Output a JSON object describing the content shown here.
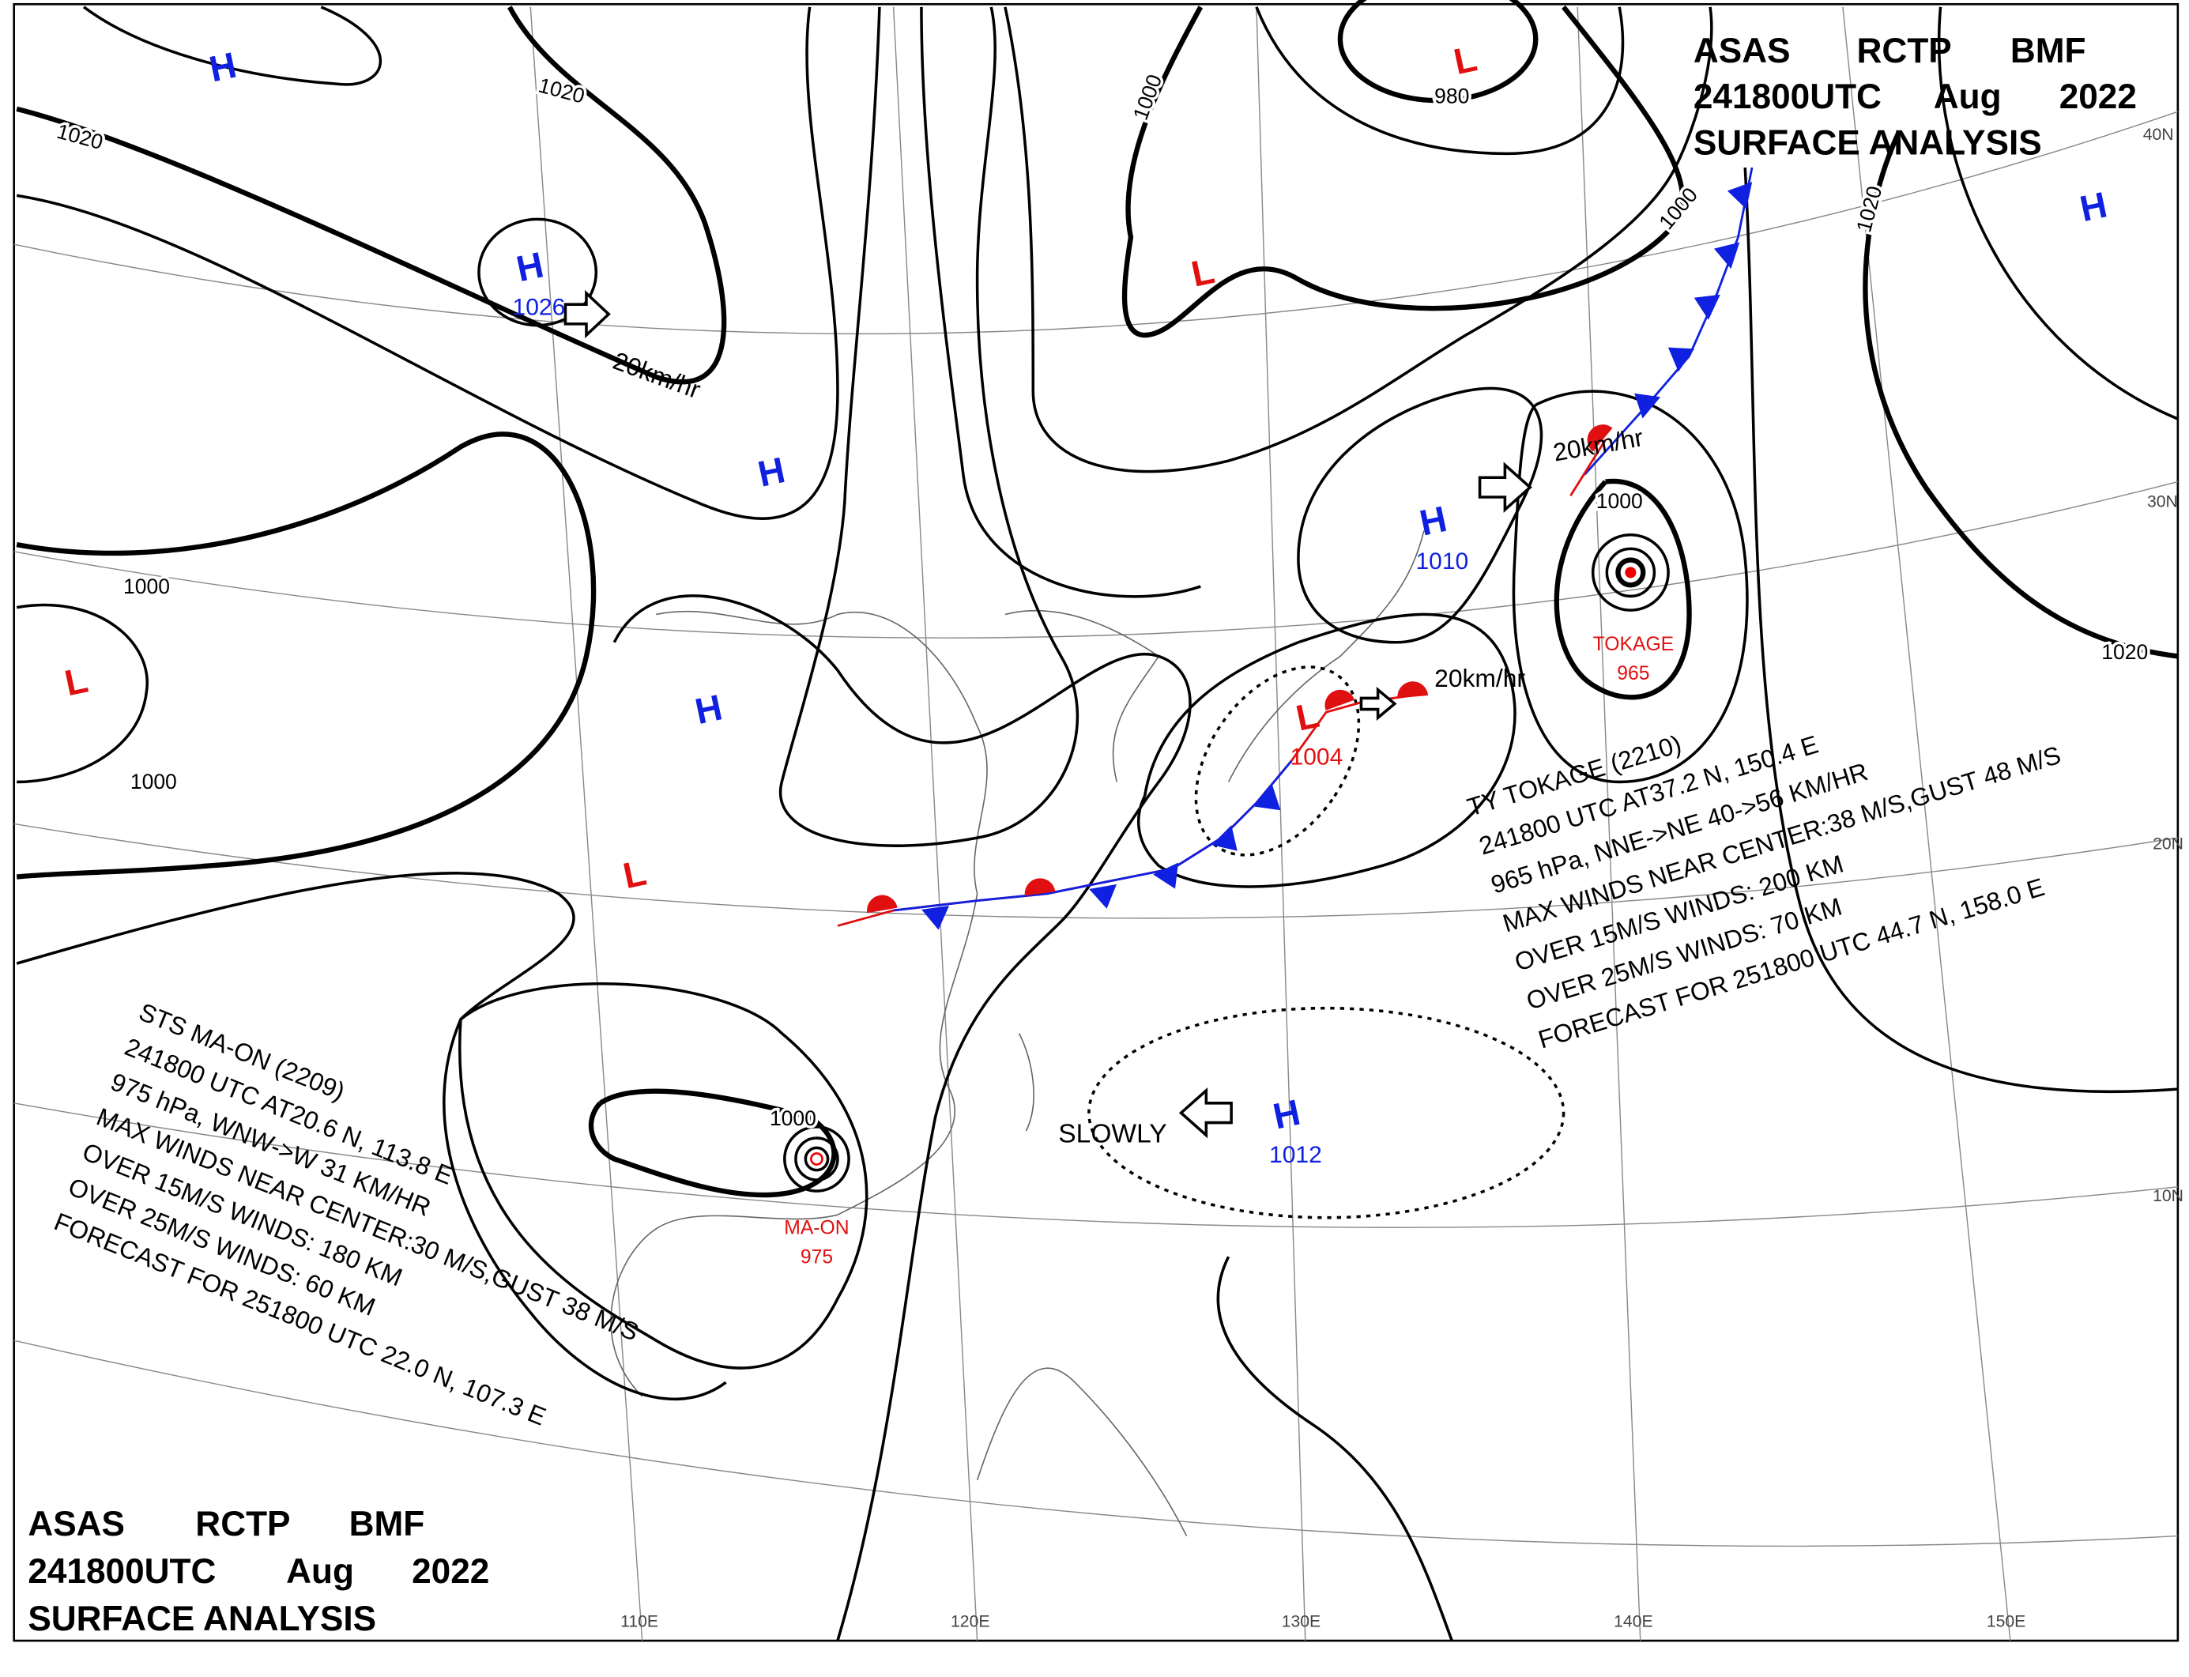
{
  "header": {
    "rows": [
      [
        "ASAS",
        "RCTP",
        "BMF"
      ],
      [
        "241800UTC",
        "Aug",
        "2022"
      ],
      [
        "SURFACE  ANALYSIS"
      ]
    ]
  },
  "pressure_centers": [
    {
      "symbol": "H"
    },
    {
      "symbol": "H",
      "value": 1026
    },
    {
      "symbol": "H"
    },
    {
      "symbol": "H"
    },
    {
      "symbol": "H",
      "value": 1010
    },
    {
      "symbol": "H",
      "value": 1012
    },
    {
      "symbol": "H"
    },
    {
      "symbol": "L"
    },
    {
      "symbol": "L"
    },
    {
      "symbol": "L"
    },
    {
      "symbol": "L"
    },
    {
      "symbol": "L",
      "value": 1004
    }
  ],
  "typhoons": [
    {
      "name": "TOKAGE",
      "value": 965,
      "info": [
        "TY  TOKAGE  (2210)",
        "241800 UTC  AT37.2 N, 150.4 E",
        "965 hPa, NNE->NE  40->56 KM/HR",
        "MAX WINDS NEAR CENTER:38 M/S,GUST 48 M/S",
        "OVER 15M/S WINDS: 200 KM",
        "OVER 25M/S WINDS: 70 KM",
        "FORECAST FOR 251800 UTC 44.7 N, 158.0 E"
      ]
    },
    {
      "name": "MA-ON",
      "value": 975,
      "info": [
        "STS  MA-ON  (2209)",
        "241800 UTC  AT20.6 N, 113.8 E",
        "975 hPa, WNW->W  31 KM/HR",
        "MAX WINDS NEAR CENTER:30 M/S,GUST 38 M/S",
        "OVER 15M/S WINDS: 180 KM",
        "OVER 25M/S WINDS: 60 KM",
        "FORECAST FOR 251800 UTC 22.0 N, 107.3 E"
      ]
    }
  ],
  "isobar_labels": [
    1020,
    1020,
    1000,
    1000,
    1000,
    1000,
    980,
    1000,
    1000,
    1020,
    1020
  ],
  "movement_labels": [
    "20km/hr",
    "20km/hr",
    "20km/hr",
    "SLOWLY"
  ],
  "latitude_labels": [
    "40N",
    "30N",
    "20N",
    "10N"
  ],
  "longitude_labels": [
    "110E",
    "120E",
    "130E",
    "140E",
    "150E"
  ]
}
